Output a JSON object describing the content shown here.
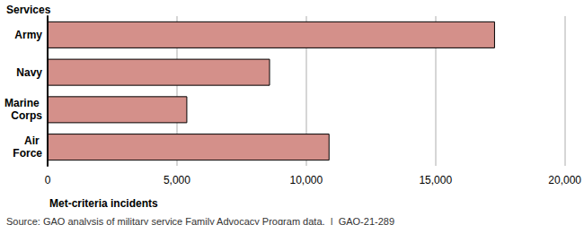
{
  "chart_data": {
    "type": "bar",
    "orientation": "horizontal",
    "ylabel": "Services",
    "xlabel": "Met-criteria incidents",
    "source": "Source: GAO analysis of military service Family Advocacy Program data.  |  GAO-21-289",
    "categories": [
      "Army",
      "Navy",
      "Marine Corps",
      "Air Force"
    ],
    "values": [
      17300,
      8600,
      5400,
      10900
    ],
    "color": "#d4908a",
    "xlim": [
      0,
      20000
    ],
    "xticks": [
      0,
      {
        "value": 5000,
        "label": "5,000"
      },
      {
        "value": 10000,
        "label": "10,000"
      },
      {
        "value": 15000,
        "label": "15,000"
      },
      {
        "value": 20000,
        "label": "20,000"
      }
    ],
    "grid": true
  }
}
